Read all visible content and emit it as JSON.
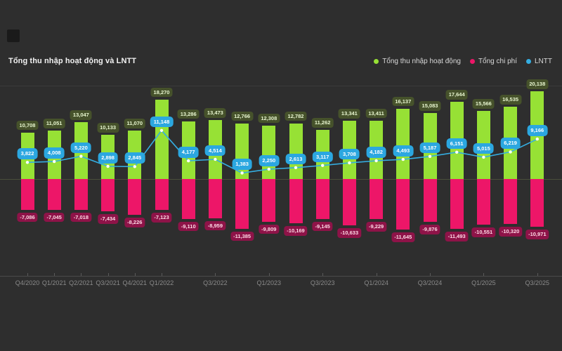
{
  "window": {
    "background": "#2e2e2e"
  },
  "header": {
    "title": "Tổng thu nhập hoạt động và LNTT"
  },
  "legend": {
    "items": [
      {
        "label": "Tổng thu nhập hoạt động",
        "color": "#97e135"
      },
      {
        "label": "Tổng chi phí",
        "color": "#ed1668"
      },
      {
        "label": "LNTT",
        "color": "#35aee2"
      }
    ]
  },
  "chart_data": {
    "type": "bar",
    "subtype": "combo bar + line, dark theme, value labels on every point",
    "title": "Tổng thu nhập hoạt động và LNTT",
    "categories": [
      "Q4/2020",
      "Q1/2021",
      "Q2/2021",
      "Q3/2021",
      "Q4/2021",
      "Q1/2022",
      "Q2/2022",
      "Q3/2022",
      "Q4/2022",
      "Q1/2023",
      "Q2/2023",
      "Q3/2023",
      "Q4/2023",
      "Q1/2024",
      "Q2/2024",
      "Q3/2024",
      "Q4/2024",
      "Q1/2025",
      "Q2/2025",
      "Q3/2025"
    ],
    "visible_x_ticks": [
      {
        "index": 0,
        "label": "Q4/2020"
      },
      {
        "index": 1,
        "label": "Q1/2021"
      },
      {
        "index": 2,
        "label": "Q2/2021"
      },
      {
        "index": 3,
        "label": "Q3/2021"
      },
      {
        "index": 4,
        "label": "Q4/2021"
      },
      {
        "index": 5,
        "label": "Q1/2022"
      },
      {
        "index": 7,
        "label": "Q3/2022"
      },
      {
        "index": 9,
        "label": "Q1/2023"
      },
      {
        "index": 11,
        "label": "Q3/2023"
      },
      {
        "index": 13,
        "label": "Q1/2024"
      },
      {
        "index": 15,
        "label": "Q3/2024"
      },
      {
        "index": 17,
        "label": "Q1/2025"
      },
      {
        "index": 19,
        "label": "Q3/2025"
      }
    ],
    "series": [
      {
        "name": "Tổng thu nhập hoạt động",
        "type": "bar",
        "color": "#97e135",
        "values": [
          10708,
          11051,
          13047,
          10133,
          11070,
          18270,
          13286,
          13473,
          12766,
          12308,
          12782,
          11262,
          13341,
          13411,
          16137,
          15083,
          17644,
          15566,
          16535,
          20138
        ]
      },
      {
        "name": "Tổng chi phí",
        "type": "bar",
        "color": "#ed1668",
        "values": [
          -7086,
          -7045,
          -7018,
          -7434,
          -8226,
          -7123,
          -9110,
          -8959,
          -11385,
          -9809,
          -10169,
          -9145,
          -10633,
          -9229,
          -11645,
          -9876,
          -11493,
          -10551,
          -10320,
          -10971
        ]
      },
      {
        "name": "LNTT",
        "type": "line",
        "color": "#35aee2",
        "values": [
          3822,
          4008,
          5220,
          2898,
          2845,
          11148,
          4177,
          4514,
          1383,
          2250,
          2613,
          3117,
          3708,
          4182,
          4493,
          5187,
          6151,
          5015,
          6219,
          9166
        ]
      }
    ],
    "ylim": [
      -12500,
      21500
    ],
    "baseline": 0,
    "grid": "top gridline + zero baseline + x axis only",
    "legend_position": "top-right",
    "value_label_format": "thousands separated with comma"
  }
}
